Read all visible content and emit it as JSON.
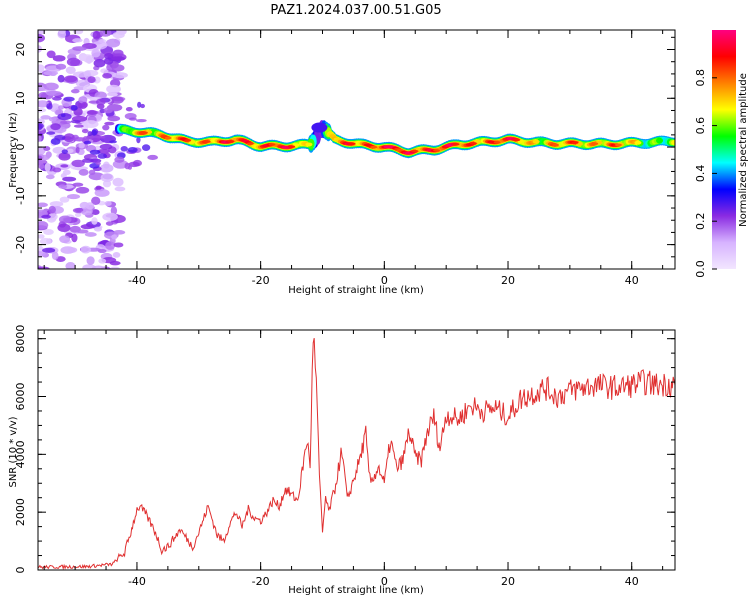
{
  "chart_data": [
    {
      "type": "heatmap",
      "title": "PAZ1.2024.037.00.51.G05",
      "xlabel": "Height of straight line (km)",
      "ylabel": "Frequency (Hz)",
      "xlim": [
        -56,
        47
      ],
      "ylim": [
        -25,
        24
      ],
      "xticks": [
        -40,
        -20,
        0,
        20,
        40
      ],
      "yticks": [
        -20,
        -10,
        0,
        10,
        20
      ],
      "colorbar": {
        "label": "Normalized spectral amplitude",
        "range": [
          0.0,
          1.0
        ],
        "ticks": [
          0.0,
          0.2,
          0.4,
          0.6,
          0.8
        ],
        "colors": [
          "#f2e6ff",
          "#d7b3ff",
          "#8a2be2",
          "#0000ff",
          "#00ffff",
          "#00ff00",
          "#ffff00",
          "#ff8000",
          "#ff0000",
          "#ff0080"
        ]
      },
      "ridge": {
        "x": [
          -43,
          -40,
          -36,
          -32,
          -28,
          -24,
          -20,
          -16,
          -12,
          -10,
          -8,
          -4,
          0,
          4,
          8,
          12,
          16,
          20,
          24,
          28,
          32,
          36,
          40,
          44,
          47
        ],
        "y": [
          3.5,
          3.2,
          2.5,
          1.2,
          1.0,
          1.5,
          0.2,
          0.2,
          0.5,
          4.0,
          1.5,
          0.5,
          0.0,
          -1.0,
          -0.5,
          0.5,
          1.0,
          1.5,
          1.0,
          0.7,
          0.7,
          0.6,
          0.8,
          1.0,
          1.2
        ],
        "amplitude": [
          0.25,
          0.8,
          0.7,
          0.75,
          0.8,
          0.8,
          0.85,
          0.85,
          0.6,
          0.3,
          0.75,
          0.8,
          0.9,
          0.85,
          0.9,
          0.8,
          0.8,
          0.85,
          0.7,
          0.7,
          0.75,
          0.75,
          0.65,
          0.55,
          0.5
        ]
      }
    },
    {
      "type": "line",
      "xlabel": "Height of straight line (km)",
      "ylabel": "SNR (10 * v/v)",
      "xlim": [
        -56,
        47
      ],
      "ylim": [
        0,
        8300
      ],
      "xticks": [
        -40,
        -20,
        0,
        20,
        40
      ],
      "yticks": [
        0,
        2000,
        4000,
        6000,
        8000
      ],
      "color": "#e03030",
      "series": [
        {
          "x": [
            -56,
            -48,
            -44,
            -42,
            -41,
            -40,
            -39.5,
            -38.5,
            -37,
            -36,
            -35,
            -33,
            -31,
            -30,
            -28.5,
            -27,
            -26,
            -25,
            -24,
            -23,
            -22,
            -21,
            -20,
            -19,
            -18,
            -17,
            -16,
            -15,
            -14,
            -13,
            -12.5,
            -12,
            -11.5,
            -11,
            -10.5,
            -10,
            -9.5,
            -9,
            -8,
            -7,
            -6.5,
            -6,
            -5,
            -4,
            -3,
            -2.5,
            -2,
            -1,
            0,
            1,
            2,
            3,
            4,
            5,
            6,
            7,
            8,
            9,
            10,
            12,
            14,
            16,
            18,
            20,
            22,
            24,
            26,
            28,
            30,
            32,
            34,
            36,
            38,
            40,
            42,
            44,
            46,
            47
          ],
          "y": [
            100,
            120,
            200,
            600,
            1300,
            2100,
            2200,
            1900,
            1300,
            700,
            800,
            1400,
            800,
            1300,
            2200,
            1200,
            1000,
            1600,
            2000,
            1500,
            2100,
            1800,
            1700,
            2000,
            2400,
            2200,
            2800,
            2600,
            2400,
            3800,
            4500,
            3600,
            8200,
            6500,
            3200,
            1300,
            2500,
            2000,
            2800,
            4000,
            3500,
            2400,
            3100,
            3800,
            4700,
            3300,
            3000,
            3600,
            3000,
            4500,
            3500,
            3800,
            4800,
            3900,
            3800,
            4800,
            5300,
            4200,
            5400,
            5200,
            5700,
            5500,
            5600,
            5300,
            5900,
            6100,
            6300,
            6000,
            6200,
            6300,
            6400,
            6350,
            6300,
            6400,
            6500,
            6400,
            6450,
            6400
          ]
        }
      ]
    }
  ]
}
